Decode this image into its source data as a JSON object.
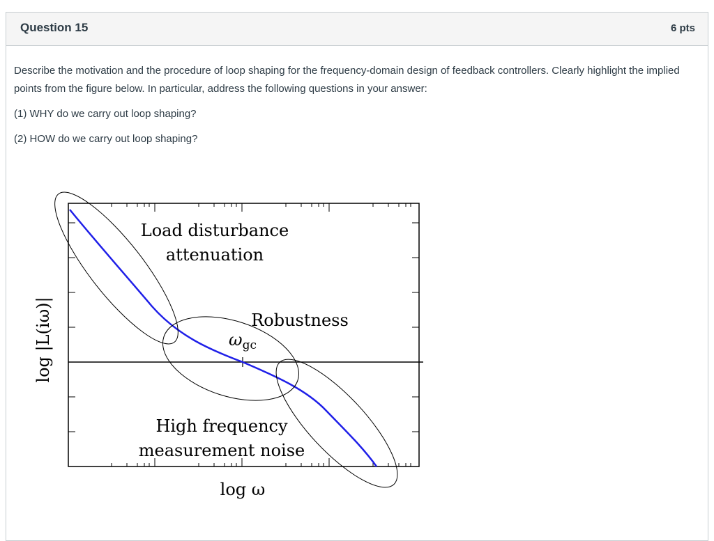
{
  "question": {
    "title": "Question 15",
    "points": "6 pts",
    "prompt": "Describe the motivation and the procedure of loop shaping for the frequency-domain design of feedback controllers. Clearly highlight the implied points from the figure below. In particular, address the following questions in your answer:",
    "item1": "(1) WHY do we carry out loop shaping?",
    "item2": "(2) HOW do we carry out loop shaping?"
  },
  "figure": {
    "ylabel": "log |L(iω)|",
    "xlabel": "log ω",
    "label_load": [
      "Load disturbance",
      "attenuation"
    ],
    "label_robust": "Robustness",
    "label_omega": "ω",
    "label_omega_sub": "gc",
    "label_noise": [
      "High frequency",
      "measurement noise"
    ],
    "curve_color": "#1f1fe8"
  }
}
